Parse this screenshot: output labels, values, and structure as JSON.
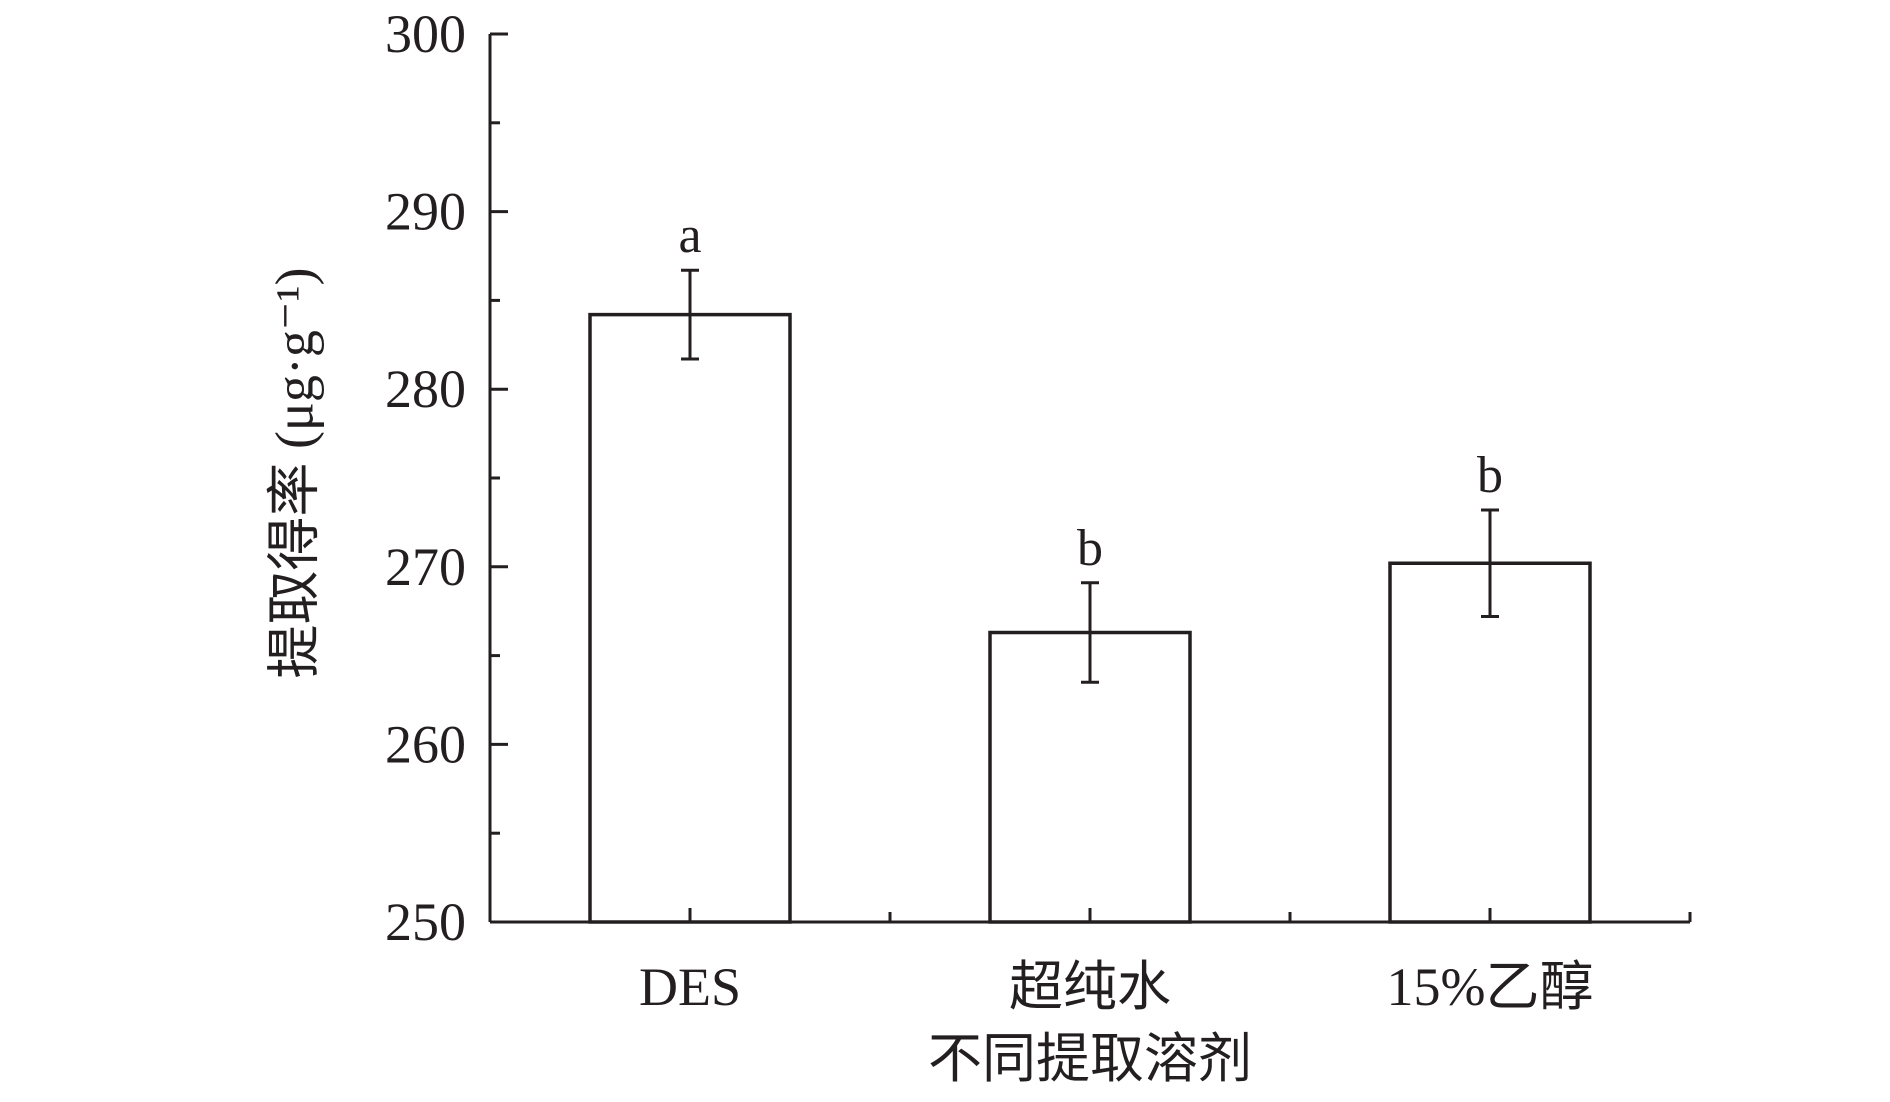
{
  "chart_data": {
    "type": "bar",
    "title": "",
    "xlabel": "不同提取溶剂",
    "ylabel": "提取得率 (μg·g⁻¹)",
    "ylim": [
      250,
      300
    ],
    "yticks": [
      250,
      260,
      270,
      280,
      290,
      300
    ],
    "y_minor_step": 5,
    "categories": [
      "DES",
      "超纯水",
      "15%乙醇"
    ],
    "values": [
      284.2,
      266.3,
      270.2
    ],
    "errors": [
      2.5,
      2.8,
      3.0
    ],
    "significance": [
      "a",
      "b",
      "b"
    ],
    "grid": false,
    "legend": "none",
    "colors": {
      "ink": "#231f20",
      "bar_fill": "#ffffff"
    }
  }
}
